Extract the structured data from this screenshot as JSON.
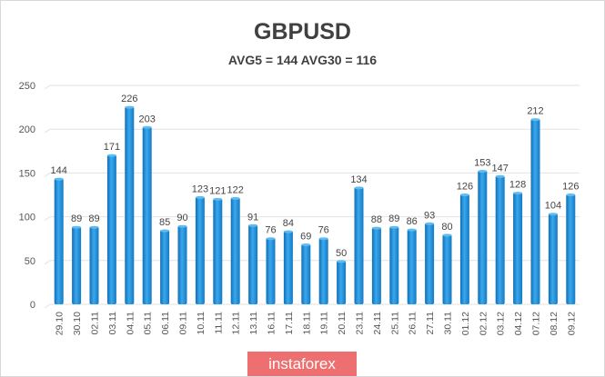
{
  "chart_data": {
    "type": "bar",
    "title": "GBPUSD",
    "subtitle": "AVG5 = 144 AVG30 = 116",
    "xlabel": "",
    "ylabel": "",
    "ylim": [
      0,
      250
    ],
    "yticks": [
      0,
      50,
      100,
      150,
      200,
      250
    ],
    "grid": true,
    "categories": [
      "29.10",
      "30.10",
      "02.11",
      "03.11",
      "04.11",
      "05.11",
      "06.11",
      "09.11",
      "10.11",
      "11.11",
      "12.11",
      "13.11",
      "16.11",
      "17.11",
      "18.11",
      "19.11",
      "20.11",
      "23.11",
      "24.11",
      "25.11",
      "26.11",
      "27.11",
      "30.11",
      "01.12",
      "02.12",
      "03.12",
      "04.12",
      "07.12",
      "08.12",
      "09.12"
    ],
    "values": [
      144,
      89,
      89,
      171,
      226,
      203,
      85,
      90,
      123,
      121,
      122,
      91,
      76,
      84,
      69,
      76,
      50,
      134,
      88,
      89,
      86,
      93,
      80,
      126,
      153,
      147,
      128,
      212,
      104,
      126
    ],
    "bar_color": "#1f8fd6"
  },
  "watermark": "instaforex"
}
